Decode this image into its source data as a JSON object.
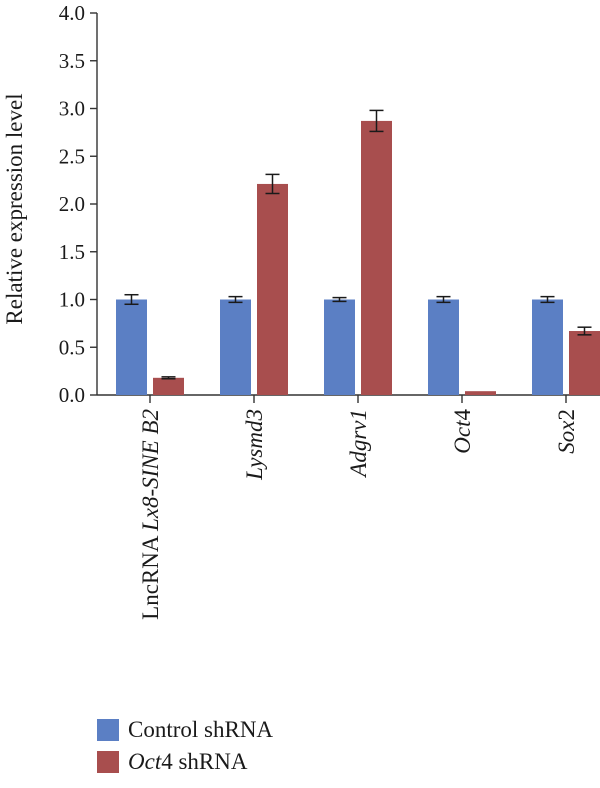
{
  "chart_data": {
    "type": "bar",
    "ylabel": "Relative expression level",
    "ylim": [
      0,
      4.0
    ],
    "yticks": [
      "0.0",
      "0.5",
      "1.0",
      "1.5",
      "2.0",
      "2.5",
      "3.0",
      "3.5",
      "4.0"
    ],
    "categories": [
      {
        "prefix": "LncRNA ",
        "italic": "Lx8-SINE B2",
        "suffix": ""
      },
      {
        "prefix": "",
        "italic": "Lysmd3",
        "suffix": ""
      },
      {
        "prefix": "",
        "italic": "Adgrv1",
        "suffix": ""
      },
      {
        "prefix": "",
        "italic": "Oct",
        "suffix": "4"
      },
      {
        "prefix": "",
        "italic": "Sox",
        "suffix": "2"
      }
    ],
    "series": [
      {
        "name": {
          "italic": "",
          "plain": "Control shRNA"
        },
        "color": "#5b7fc4",
        "values": [
          1.0,
          1.0,
          1.0,
          1.0,
          1.0
        ],
        "errors": [
          0.05,
          0.03,
          0.02,
          0.03,
          0.03
        ]
      },
      {
        "name": {
          "italic": "Oct",
          "plain": "4 shRNA"
        },
        "color": "#a84e4e",
        "values": [
          0.18,
          2.21,
          2.87,
          0.04,
          0.67
        ],
        "errors": [
          0.01,
          0.1,
          0.11,
          0.0,
          0.04
        ]
      }
    ],
    "grid": false,
    "legend_position": "bottom-left"
  }
}
